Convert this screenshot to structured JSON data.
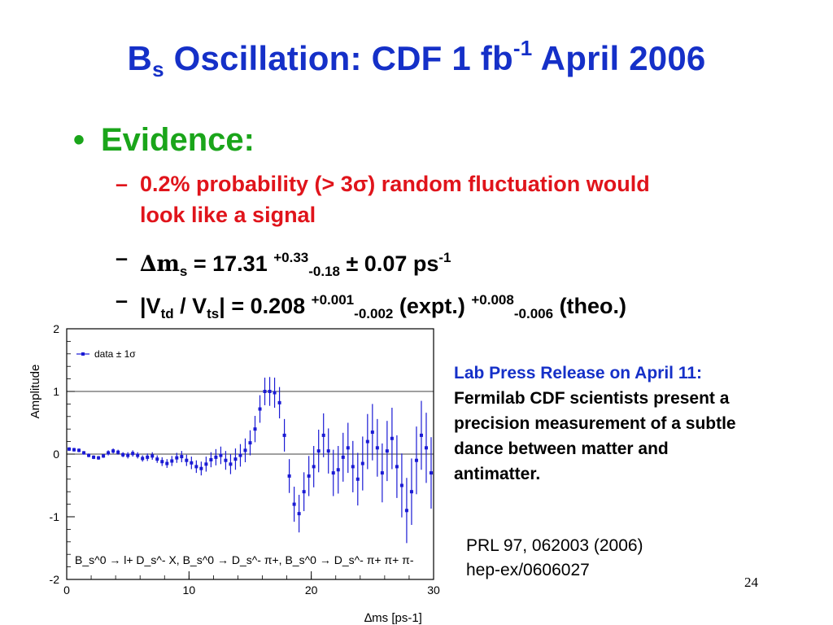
{
  "title": {
    "main": "B",
    "sub": "s",
    "rest": " Oscillation: CDF 1 fb",
    "sup": "-1",
    "tail": " April 2006"
  },
  "bullet": {
    "symbol": "•",
    "label": "Evidence:"
  },
  "items": [
    {
      "dash": "–",
      "line1": "0.2% probability (> 3σ) random fluctuation would",
      "line2": "look like a signal"
    },
    {
      "dash": "–",
      "delta": "∆m",
      "sub": "s",
      "eq": " = 17.31 ",
      "sup": "+0.33",
      "sub2": "-0.18",
      "rest": " ± 0.07 ps",
      "sup2": "-1"
    },
    {
      "dash": "–",
      "a": "|V",
      "sub_a": "td",
      "b": " / V",
      "sub_b": "ts",
      "c": "| = 0.208 ",
      "sup1": "+0.001",
      "sub1": "-0.002",
      "d": " (expt.) ",
      "sup2": "+0.008",
      "sub2": "-0.006",
      "e": " (theo.)"
    }
  ],
  "press": {
    "heading": "Lab Press Release on April 11:",
    "lines": [
      "Fermilab CDF scientists present a",
      "precision measurement of a subtle",
      "dance between matter and",
      "antimatter."
    ]
  },
  "reference": {
    "line1": "PRL 97, 062003 (2006)",
    "line2": "hep-ex/0606027"
  },
  "page_number": "24",
  "chart_data": {
    "type": "scatter",
    "ylabel": "Amplitude",
    "xlabel": "∆ms [ps-1]",
    "xlim": [
      0,
      30
    ],
    "ylim": [
      -2,
      2
    ],
    "xticks": [
      "0",
      "10",
      "20",
      "30"
    ],
    "yticks": [
      "-2",
      "-1",
      "0",
      "1",
      "2"
    ],
    "reference_lines": [
      0,
      1
    ],
    "legend": {
      "label": "data ± 1σ",
      "placement": "top-left",
      "color": "#1a1ad4"
    },
    "annotation": "B_s^0 → l+ D_s^- X, B_s^0 → D_s^- π+, B_s^0 → D_s^- π+ π+ π-",
    "series": [
      {
        "x": [
          0.2,
          0.6,
          1.0,
          1.4,
          1.8,
          2.2,
          2.6,
          3.0,
          3.4,
          3.8,
          4.2,
          4.6,
          5.0,
          5.4,
          5.8,
          6.2,
          6.6,
          7.0,
          7.4,
          7.8,
          8.2,
          8.6,
          9.0,
          9.4,
          9.8,
          10.2,
          10.6,
          11.0,
          11.4,
          11.8,
          12.2,
          12.6,
          13.0,
          13.4,
          13.8,
          14.2,
          14.6,
          15.0,
          15.4,
          15.8,
          16.2,
          16.6,
          17.0,
          17.4,
          17.8,
          18.2,
          18.6,
          19.0,
          19.4,
          19.8,
          20.2,
          20.6,
          21.0,
          21.4,
          21.8,
          22.2,
          22.6,
          23.0,
          23.4,
          23.8,
          24.2,
          24.6,
          25.0,
          25.4,
          25.8,
          26.2,
          26.6,
          27.0,
          27.4,
          27.8,
          28.2,
          28.6,
          29.0,
          29.4,
          29.8
        ],
        "y": [
          0.08,
          0.07,
          0.06,
          0.02,
          -0.02,
          -0.05,
          -0.06,
          -0.03,
          0.02,
          0.05,
          0.03,
          -0.01,
          -0.02,
          0.01,
          -0.02,
          -0.07,
          -0.05,
          -0.03,
          -0.08,
          -0.12,
          -0.15,
          -0.11,
          -0.06,
          -0.04,
          -0.1,
          -0.14,
          -0.2,
          -0.23,
          -0.16,
          -0.09,
          -0.05,
          -0.02,
          -0.1,
          -0.16,
          -0.08,
          -0.02,
          0.06,
          0.18,
          0.4,
          0.72,
          1.0,
          1.0,
          0.98,
          0.82,
          0.3,
          -0.35,
          -0.8,
          -0.95,
          -0.6,
          -0.35,
          -0.2,
          0.05,
          0.3,
          0.05,
          -0.3,
          -0.25,
          -0.05,
          0.1,
          -0.2,
          -0.4,
          -0.15,
          0.2,
          0.35,
          0.1,
          -0.3,
          0.05,
          0.25,
          -0.2,
          -0.5,
          -0.9,
          -0.6,
          -0.1,
          0.3,
          0.1,
          -0.3
        ],
        "err": [
          0.03,
          0.03,
          0.03,
          0.03,
          0.03,
          0.03,
          0.03,
          0.03,
          0.04,
          0.04,
          0.04,
          0.04,
          0.05,
          0.05,
          0.05,
          0.05,
          0.06,
          0.06,
          0.06,
          0.07,
          0.07,
          0.08,
          0.08,
          0.09,
          0.09,
          0.1,
          0.1,
          0.11,
          0.12,
          0.12,
          0.13,
          0.14,
          0.15,
          0.16,
          0.17,
          0.18,
          0.19,
          0.2,
          0.21,
          0.22,
          0.22,
          0.23,
          0.24,
          0.25,
          0.26,
          0.27,
          0.28,
          0.3,
          0.31,
          0.32,
          0.33,
          0.34,
          0.35,
          0.36,
          0.37,
          0.38,
          0.39,
          0.4,
          0.41,
          0.42,
          0.43,
          0.44,
          0.45,
          0.46,
          0.47,
          0.48,
          0.49,
          0.5,
          0.51,
          0.52,
          0.53,
          0.54,
          0.55,
          0.56,
          0.57
        ]
      }
    ]
  }
}
